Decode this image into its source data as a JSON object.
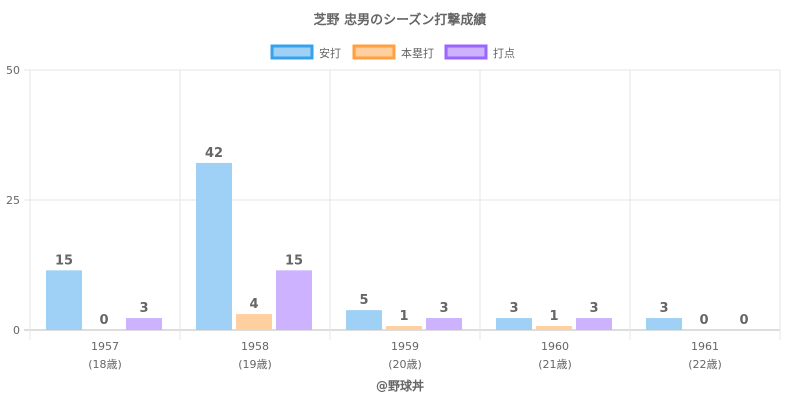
{
  "chart_data": {
    "type": "bar",
    "title": "芝野 忠男のシーズン打撃成績",
    "categories": [
      "1957",
      "1958",
      "1959",
      "1960",
      "1961"
    ],
    "sublabels": [
      "(18歳)",
      "(19歳)",
      "(20歳)",
      "(21歳)",
      "(22歳)"
    ],
    "series": [
      {
        "name": "安打",
        "values": [
          15,
          42,
          5,
          3,
          3
        ],
        "fill": "#9fd0f5",
        "stroke": "#36a2eb"
      },
      {
        "name": "本塁打",
        "values": [
          0,
          4,
          1,
          1,
          0
        ],
        "fill": "#ffcf9f",
        "stroke": "#ff9f40"
      },
      {
        "name": "打点",
        "values": [
          3,
          15,
          3,
          3,
          0
        ],
        "fill": "#ccb2ff",
        "stroke": "#9966ff"
      }
    ],
    "bar_display_scale": 0.765,
    "ylim": [
      0,
      50
    ],
    "yticks": [
      0,
      25,
      50
    ],
    "grid": true,
    "legend": "top",
    "footer": "@野球丼"
  }
}
